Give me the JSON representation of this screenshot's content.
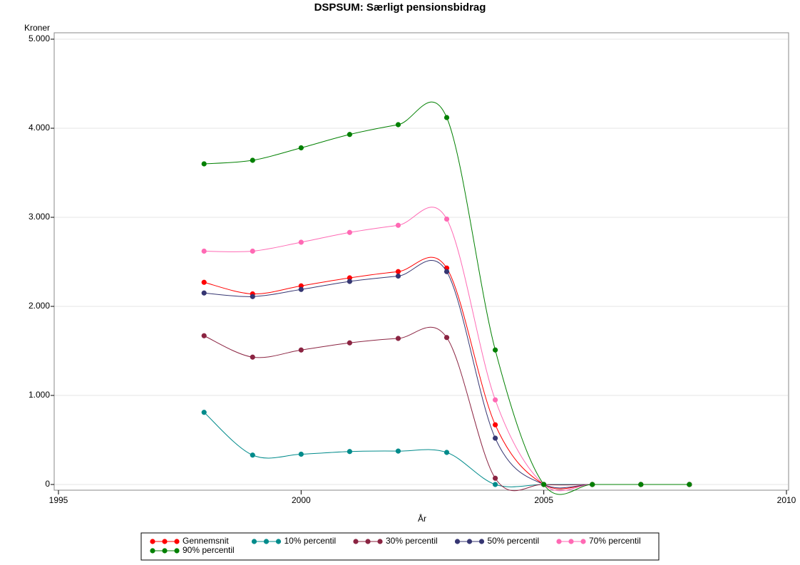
{
  "chart_data": {
    "type": "line",
    "title": "DSPSUM: Særligt pensionsbidrag",
    "x_label": "År",
    "y_label": "Kroner",
    "x": [
      1998,
      1999,
      2000,
      2001,
      2002,
      2003,
      2004,
      2005,
      2006,
      2007,
      2008
    ],
    "series": [
      {
        "name": "Gennemsnit",
        "color": "#ff0000",
        "values": [
          2270,
          2140,
          2230,
          2320,
          2390,
          2430,
          670,
          0,
          0,
          0,
          0
        ]
      },
      {
        "name": "10% percentil",
        "color": "#008b8b",
        "values": [
          810,
          330,
          340,
          370,
          375,
          360,
          0,
          0,
          0,
          0,
          0
        ]
      },
      {
        "name": "30% percentil",
        "color": "#8b2442",
        "values": [
          1670,
          1430,
          1510,
          1590,
          1640,
          1650,
          70,
          0,
          0,
          0,
          0
        ]
      },
      {
        "name": "50% percentil",
        "color": "#363672",
        "values": [
          2150,
          2110,
          2190,
          2280,
          2340,
          2390,
          520,
          0,
          0,
          0,
          0
        ]
      },
      {
        "name": "70% percentil",
        "color": "#ff69b4",
        "values": [
          2620,
          2620,
          2720,
          2830,
          2910,
          2980,
          950,
          0,
          0,
          0,
          0
        ]
      },
      {
        "name": "90% percentil",
        "color": "#008000",
        "values": [
          3600,
          3640,
          3780,
          3930,
          4040,
          4120,
          1510,
          0,
          0,
          0,
          0
        ]
      }
    ],
    "xlim": [
      1995,
      2010
    ],
    "xticks": [
      1995,
      2000,
      2005,
      2010
    ],
    "ylim": [
      0,
      5000
    ],
    "yticks": [
      0,
      {
        "value": 1000,
        "label": "1.000"
      },
      {
        "value": 2000,
        "label": "2.000"
      },
      {
        "value": 3000,
        "label": "3.000"
      },
      {
        "value": 4000,
        "label": "4.000"
      },
      {
        "value": 5000,
        "label": "5.000"
      }
    ],
    "grid": true
  }
}
